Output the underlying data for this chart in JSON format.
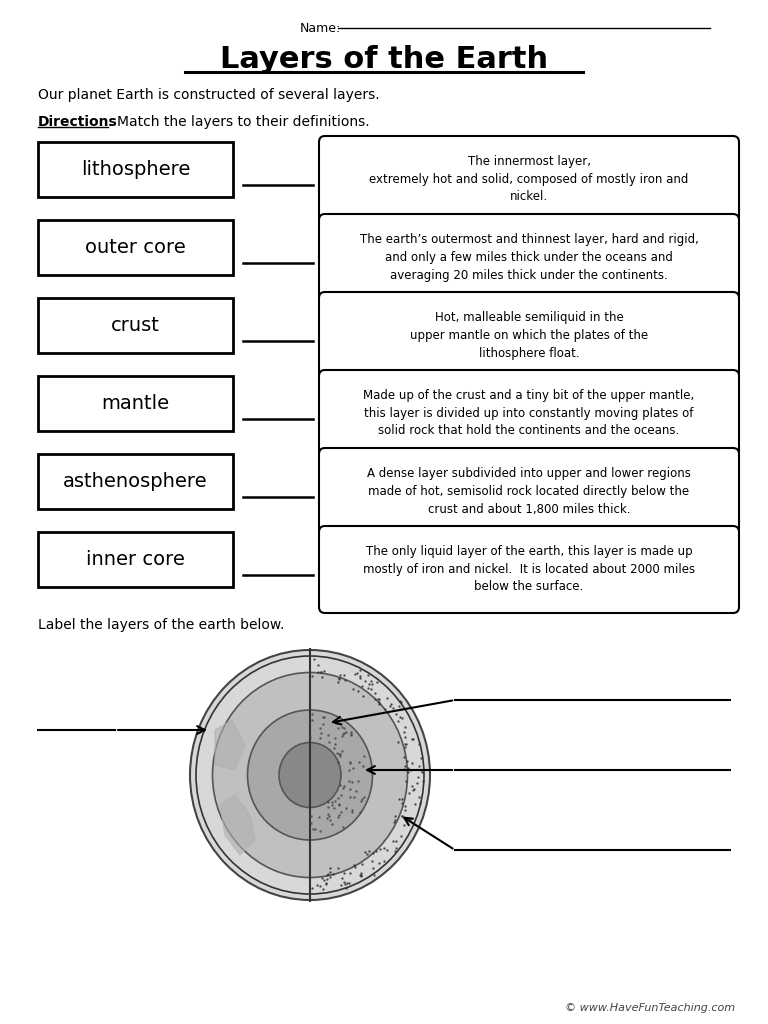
{
  "title": "Layers of the Earth",
  "name_label": "Name:",
  "intro_text": "Our planet Earth is constructed of several layers.",
  "label_instruction": "Label the layers of the earth below.",
  "copyright": "© www.HaveFunTeaching.com",
  "left_labels": [
    "lithosphere",
    "outer core",
    "crust",
    "mantle",
    "asthenosphere",
    "inner core"
  ],
  "right_descriptions": [
    "The innermost layer,\nextremely hot and solid, composed of mostly iron and\nnickel.",
    "The earth’s outermost and thinnest layer, hard and rigid,\nand only a few miles thick under the oceans and\naveraging 20 miles thick under the continents.",
    "Hot, malleable semiliquid in the\nupper mantle on which the plates of the\nlithosphere float.",
    "Made up of the crust and a tiny bit of the upper mantle,\nthis layer is divided up into constantly moving plates of\nsolid rock that hold the continents and the oceans.",
    "A dense layer subdivided into upper and lower regions\nmade of hot, semisolid rock located directly below the\ncrust and about 1,800 miles thick.",
    "The only liquid layer of the earth, this layer is made up\nmostly of iron and nickel.  It is located about 2000 miles\nbelow the surface."
  ],
  "bg_color": "#ffffff",
  "text_color": "#000000"
}
